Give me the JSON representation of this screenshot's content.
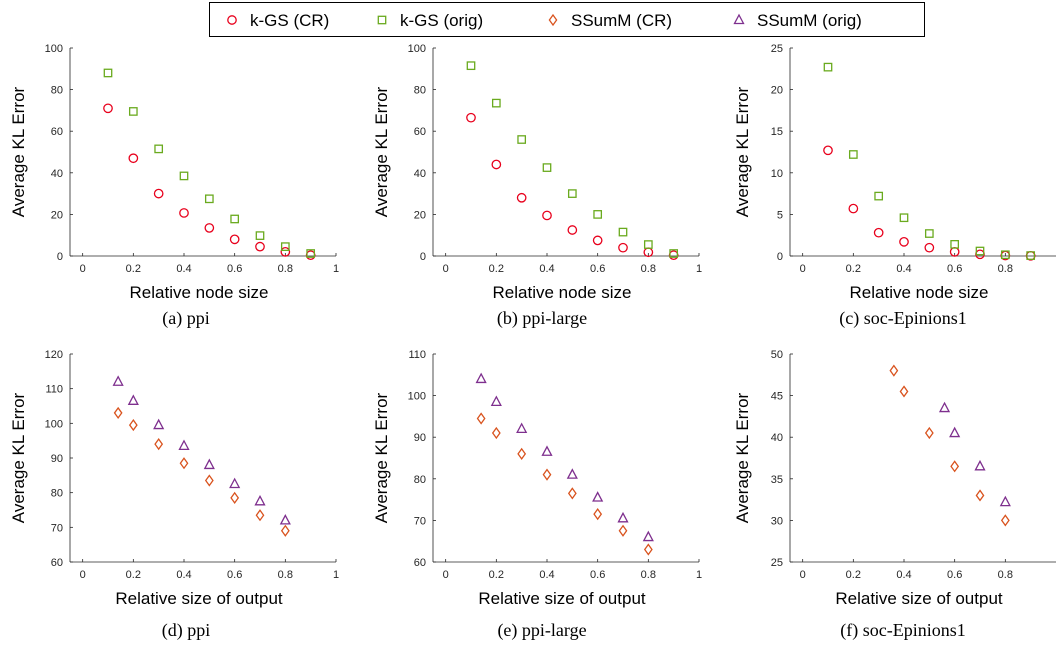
{
  "legend": {
    "position": "top-center",
    "entries": [
      {
        "label": "k-GS (CR)",
        "marker": "circle",
        "color": "#e8001c"
      },
      {
        "label": "k-GS (orig)",
        "marker": "square",
        "color": "#6aaa1e"
      },
      {
        "label": "SSumM (CR)",
        "marker": "diamond",
        "color": "#d9531e"
      },
      {
        "label": "SSumM (orig)",
        "marker": "triangle",
        "color": "#7e2f8e"
      }
    ]
  },
  "chart_data": [
    {
      "type": "scatter",
      "caption": "(a) ppi",
      "xlabel": "Relative node size",
      "ylabel": "Average KL Error",
      "xlim": [
        -0.05,
        1
      ],
      "ylim": [
        0,
        100
      ],
      "xticks": [
        0,
        0.2,
        0.4,
        0.6,
        0.8,
        1
      ],
      "xticklabels": [
        "0",
        "0.2",
        "0.4",
        "0.6",
        "0.8",
        "1"
      ],
      "yticks": [
        0,
        20,
        40,
        60,
        80,
        100
      ],
      "yticklabels": [
        "0",
        "20",
        "40",
        "60",
        "80",
        "100"
      ],
      "series": [
        {
          "name": "k-GS (CR)",
          "x": [
            0.1,
            0.2,
            0.3,
            0.4,
            0.5,
            0.6,
            0.7,
            0.8,
            0.9
          ],
          "y": [
            71,
            47,
            30,
            20.7,
            13.5,
            8,
            4.5,
            2,
            0.4
          ]
        },
        {
          "name": "k-GS (orig)",
          "x": [
            0.1,
            0.2,
            0.3,
            0.4,
            0.5,
            0.6,
            0.7,
            0.8,
            0.9
          ],
          "y": [
            88,
            69.5,
            51.5,
            38.5,
            27.5,
            17.8,
            9.8,
            4.5,
            1.2
          ]
        }
      ]
    },
    {
      "type": "scatter",
      "caption": "(b) ppi-large",
      "xlabel": "Relative node size",
      "ylabel": "Average KL Error",
      "xlim": [
        -0.05,
        1
      ],
      "ylim": [
        0,
        100
      ],
      "xticks": [
        0,
        0.2,
        0.4,
        0.6,
        0.8,
        1
      ],
      "xticklabels": [
        "0",
        "0.2",
        "0.4",
        "0.6",
        "0.8",
        "1"
      ],
      "yticks": [
        0,
        20,
        40,
        60,
        80,
        100
      ],
      "yticklabels": [
        "0",
        "20",
        "40",
        "60",
        "80",
        "100"
      ],
      "series": [
        {
          "name": "k-GS (CR)",
          "x": [
            0.1,
            0.2,
            0.3,
            0.4,
            0.5,
            0.6,
            0.7,
            0.8,
            0.9
          ],
          "y": [
            66.5,
            44,
            28,
            19.5,
            12.5,
            7.5,
            4,
            1.8,
            0.4
          ]
        },
        {
          "name": "k-GS (orig)",
          "x": [
            0.1,
            0.2,
            0.3,
            0.4,
            0.5,
            0.6,
            0.7,
            0.8,
            0.9
          ],
          "y": [
            91.5,
            73.5,
            56,
            42.5,
            30,
            20,
            11.5,
            5.5,
            1.2
          ]
        }
      ]
    },
    {
      "type": "scatter",
      "caption": "(c) soc-Epinions1",
      "xlabel": "Relative node size",
      "ylabel": "Average KL Error",
      "xlim": [
        -0.05,
        1
      ],
      "ylim": [
        0,
        25
      ],
      "xticks": [
        0,
        0.2,
        0.4,
        0.6,
        0.8
      ],
      "xticklabels": [
        "0",
        "0.2",
        "0.4",
        "0.6",
        "0.8"
      ],
      "yticks": [
        0,
        5,
        10,
        15,
        20,
        25
      ],
      "yticklabels": [
        "0",
        "5",
        "10",
        "15",
        "20",
        "25"
      ],
      "series": [
        {
          "name": "k-GS (CR)",
          "x": [
            0.1,
            0.2,
            0.3,
            0.4,
            0.5,
            0.6,
            0.7,
            0.8,
            0.9
          ],
          "y": [
            12.7,
            5.7,
            2.8,
            1.7,
            1,
            0.5,
            0.2,
            0.05,
            0.02
          ]
        },
        {
          "name": "k-GS (orig)",
          "x": [
            0.1,
            0.2,
            0.3,
            0.4,
            0.5,
            0.6,
            0.7,
            0.8,
            0.9
          ],
          "y": [
            22.7,
            12.2,
            7.2,
            4.6,
            2.7,
            1.4,
            0.6,
            0.15,
            0.05
          ]
        }
      ]
    },
    {
      "type": "scatter",
      "caption": "(d) ppi",
      "xlabel": "Relative size of output",
      "ylabel": "Average KL Error",
      "xlim": [
        -0.05,
        1
      ],
      "ylim": [
        60,
        120
      ],
      "xticks": [
        0,
        0.2,
        0.4,
        0.6,
        0.8,
        1
      ],
      "xticklabels": [
        "0",
        "0.2",
        "0.4",
        "0.6",
        "0.8",
        "1"
      ],
      "yticks": [
        60,
        70,
        80,
        90,
        100,
        110,
        120
      ],
      "yticklabels": [
        "60",
        "70",
        "80",
        "90",
        "100",
        "110",
        "120"
      ],
      "series": [
        {
          "name": "SSumM (CR)",
          "x": [
            0.14,
            0.2,
            0.3,
            0.4,
            0.5,
            0.6,
            0.7,
            0.8
          ],
          "y": [
            103,
            99.5,
            94,
            88.5,
            83.5,
            78.5,
            73.5,
            69
          ]
        },
        {
          "name": "SSumM (orig)",
          "x": [
            0.14,
            0.2,
            0.3,
            0.4,
            0.5,
            0.6,
            0.7,
            0.8
          ],
          "y": [
            112,
            106.5,
            99.5,
            93.5,
            88,
            82.5,
            77.5,
            72
          ]
        }
      ]
    },
    {
      "type": "scatter",
      "caption": "(e) ppi-large",
      "xlabel": "Relative size of output",
      "ylabel": "Average KL Error",
      "xlim": [
        -0.05,
        1
      ],
      "ylim": [
        60,
        110
      ],
      "xticks": [
        0,
        0.2,
        0.4,
        0.6,
        0.8,
        1
      ],
      "xticklabels": [
        "0",
        "0.2",
        "0.4",
        "0.6",
        "0.8",
        "1"
      ],
      "yticks": [
        60,
        70,
        80,
        90,
        100,
        110
      ],
      "yticklabels": [
        "60",
        "70",
        "80",
        "90",
        "100",
        "110"
      ],
      "series": [
        {
          "name": "SSumM (CR)",
          "x": [
            0.14,
            0.2,
            0.3,
            0.4,
            0.5,
            0.6,
            0.7,
            0.8
          ],
          "y": [
            94.5,
            91,
            86,
            81,
            76.5,
            71.5,
            67.5,
            63
          ]
        },
        {
          "name": "SSumM (orig)",
          "x": [
            0.14,
            0.2,
            0.3,
            0.4,
            0.5,
            0.6,
            0.7,
            0.8
          ],
          "y": [
            104,
            98.5,
            92,
            86.5,
            81,
            75.5,
            70.5,
            66
          ]
        }
      ]
    },
    {
      "type": "scatter",
      "caption": "(f) soc-Epinions1",
      "xlabel": "Relative size of output",
      "ylabel": "Average KL Error",
      "xlim": [
        -0.05,
        1
      ],
      "ylim": [
        25,
        50
      ],
      "xticks": [
        0,
        0.2,
        0.4,
        0.6,
        0.8
      ],
      "xticklabels": [
        "0",
        "0.2",
        "0.4",
        "0.6",
        "0.8"
      ],
      "yticks": [
        25,
        30,
        35,
        40,
        45,
        50
      ],
      "yticklabels": [
        "25",
        "30",
        "35",
        "40",
        "45",
        "50"
      ],
      "series": [
        {
          "name": "SSumM (CR)",
          "x": [
            0.36,
            0.4,
            0.5,
            0.6,
            0.7,
            0.8
          ],
          "y": [
            48,
            45.5,
            40.5,
            36.5,
            33,
            30
          ]
        },
        {
          "name": "SSumM (orig)",
          "x": [
            0.56,
            0.6,
            0.7,
            0.8
          ],
          "y": [
            43.5,
            40.5,
            36.5,
            32.2
          ]
        }
      ]
    }
  ]
}
